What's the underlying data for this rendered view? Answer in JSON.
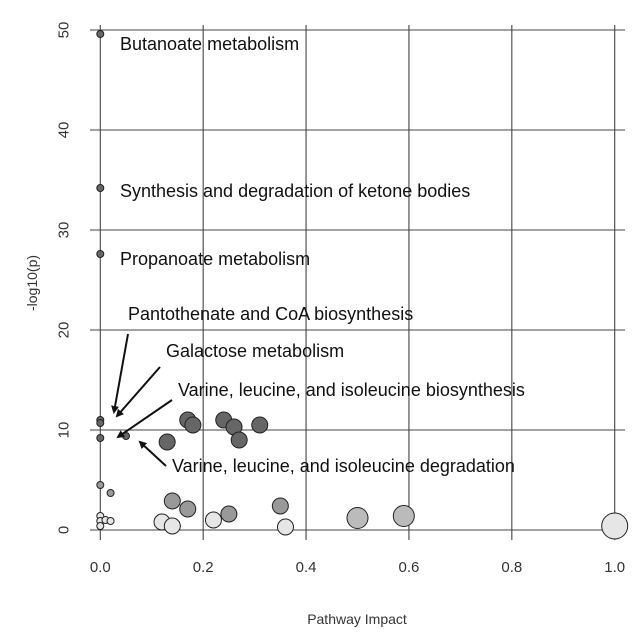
{
  "chart_data": {
    "type": "scatter",
    "xlabel": "Pathway Impact",
    "ylabel": "-log10(p)",
    "xlim": [
      -0.02,
      1.02
    ],
    "ylim": [
      -1,
      50.5
    ],
    "xticks": [
      0.0,
      0.2,
      0.4,
      0.6,
      0.8,
      1.0
    ],
    "xtick_labels": [
      "0.0",
      "0.2",
      "0.4",
      "0.6",
      "0.8",
      "1.0"
    ],
    "yticks": [
      0,
      10,
      20,
      30,
      40,
      50
    ],
    "ytick_labels": [
      "0",
      "10",
      "20",
      "30",
      "40",
      "50"
    ],
    "grid": true,
    "points": [
      {
        "x": 0.0,
        "y": 49.6,
        "size": "small",
        "shade": "dark"
      },
      {
        "x": 0.0,
        "y": 34.2,
        "size": "small",
        "shade": "dark"
      },
      {
        "x": 0.0,
        "y": 27.6,
        "size": "small",
        "shade": "dark"
      },
      {
        "x": 0.0,
        "y": 11.0,
        "size": "small",
        "shade": "dark"
      },
      {
        "x": 0.0,
        "y": 10.7,
        "size": "small",
        "shade": "dark"
      },
      {
        "x": 0.0,
        "y": 9.2,
        "size": "small",
        "shade": "dark"
      },
      {
        "x": 0.05,
        "y": 9.4,
        "size": "small",
        "shade": "dark"
      },
      {
        "x": 0.0,
        "y": 4.5,
        "size": "small",
        "shade": "medium"
      },
      {
        "x": 0.02,
        "y": 3.7,
        "size": "small",
        "shade": "medium"
      },
      {
        "x": 0.0,
        "y": 1.4,
        "size": "small",
        "shade": "light"
      },
      {
        "x": 0.0,
        "y": 0.9,
        "size": "small",
        "shade": "light"
      },
      {
        "x": 0.0,
        "y": 0.4,
        "size": "small",
        "shade": "light"
      },
      {
        "x": 0.01,
        "y": 1.0,
        "size": "small",
        "shade": "light"
      },
      {
        "x": 0.02,
        "y": 0.9,
        "size": "small",
        "shade": "light"
      },
      {
        "x": 0.17,
        "y": 11.0,
        "size": "medium",
        "shade": "dark"
      },
      {
        "x": 0.18,
        "y": 10.5,
        "size": "medium",
        "shade": "dark"
      },
      {
        "x": 0.24,
        "y": 11.0,
        "size": "medium",
        "shade": "dark"
      },
      {
        "x": 0.26,
        "y": 10.3,
        "size": "medium",
        "shade": "dark"
      },
      {
        "x": 0.31,
        "y": 10.5,
        "size": "medium",
        "shade": "dark"
      },
      {
        "x": 0.27,
        "y": 9.0,
        "size": "medium",
        "shade": "dark"
      },
      {
        "x": 0.13,
        "y": 8.8,
        "size": "medium",
        "shade": "dark"
      },
      {
        "x": 0.14,
        "y": 2.9,
        "size": "medium",
        "shade": "medium"
      },
      {
        "x": 0.17,
        "y": 2.1,
        "size": "medium",
        "shade": "medium"
      },
      {
        "x": 0.25,
        "y": 1.6,
        "size": "medium",
        "shade": "medium"
      },
      {
        "x": 0.35,
        "y": 2.4,
        "size": "medium",
        "shade": "medium"
      },
      {
        "x": 0.12,
        "y": 0.8,
        "size": "medium",
        "shade": "light"
      },
      {
        "x": 0.14,
        "y": 0.4,
        "size": "medium",
        "shade": "light"
      },
      {
        "x": 0.22,
        "y": 1.0,
        "size": "medium",
        "shade": "light"
      },
      {
        "x": 0.36,
        "y": 0.3,
        "size": "medium",
        "shade": "light"
      },
      {
        "x": 0.5,
        "y": 1.2,
        "size": "large",
        "shade": "lightmedium"
      },
      {
        "x": 0.59,
        "y": 1.4,
        "size": "large",
        "shade": "lightmedium"
      },
      {
        "x": 1.0,
        "y": 0.4,
        "size": "xlarge",
        "shade": "light"
      }
    ],
    "annotations": [
      {
        "text": "Butanoate metabolism",
        "point_index": 0,
        "arrow": false
      },
      {
        "text": "Synthesis and degradation of ketone bodies",
        "point_index": 1,
        "arrow": false
      },
      {
        "text": "Propanoate metabolism",
        "point_index": 2,
        "arrow": false
      },
      {
        "text": "Pantothenate and CoA biosynthesis",
        "point_index": 3,
        "arrow": true
      },
      {
        "text": "Galactose metabolism",
        "point_index": 4,
        "arrow": true
      },
      {
        "text": "Varine, leucine, and isoleucine biosynthesis",
        "point_index": 5,
        "arrow": true
      },
      {
        "text": "Varine, leucine, and isoleucine degradation",
        "point_index": 6,
        "arrow": true
      }
    ],
    "colors": {
      "dark": "#666666",
      "medium": "#999999",
      "lightmedium": "#bbbbbb",
      "light": "#e6e6e6",
      "grid": "#444444",
      "text": "#111111"
    }
  }
}
